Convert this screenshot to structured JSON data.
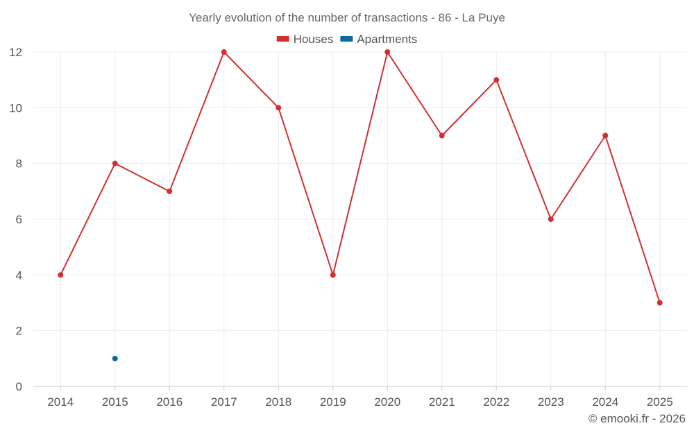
{
  "chart_data": {
    "type": "line",
    "title": "Yearly evolution of the number of transactions - 86 - La Puye",
    "categories": [
      "2014",
      "2015",
      "2016",
      "2017",
      "2018",
      "2019",
      "2020",
      "2021",
      "2022",
      "2023",
      "2024",
      "2025"
    ],
    "ylim": [
      0,
      12
    ],
    "yticks": [
      0,
      2,
      4,
      6,
      8,
      10,
      12
    ],
    "grid": true,
    "legend_position": "top-center",
    "series": [
      {
        "name": "Houses",
        "color": "#d32f2f",
        "values": [
          4,
          8,
          7,
          12,
          10,
          4,
          12,
          9,
          11,
          6,
          9,
          3
        ]
      },
      {
        "name": "Apartments",
        "color": "#0b6aa2",
        "values": [
          null,
          1,
          null,
          null,
          null,
          null,
          null,
          null,
          null,
          null,
          null,
          null
        ]
      }
    ],
    "credit": "© emooki.fr - 2026"
  }
}
